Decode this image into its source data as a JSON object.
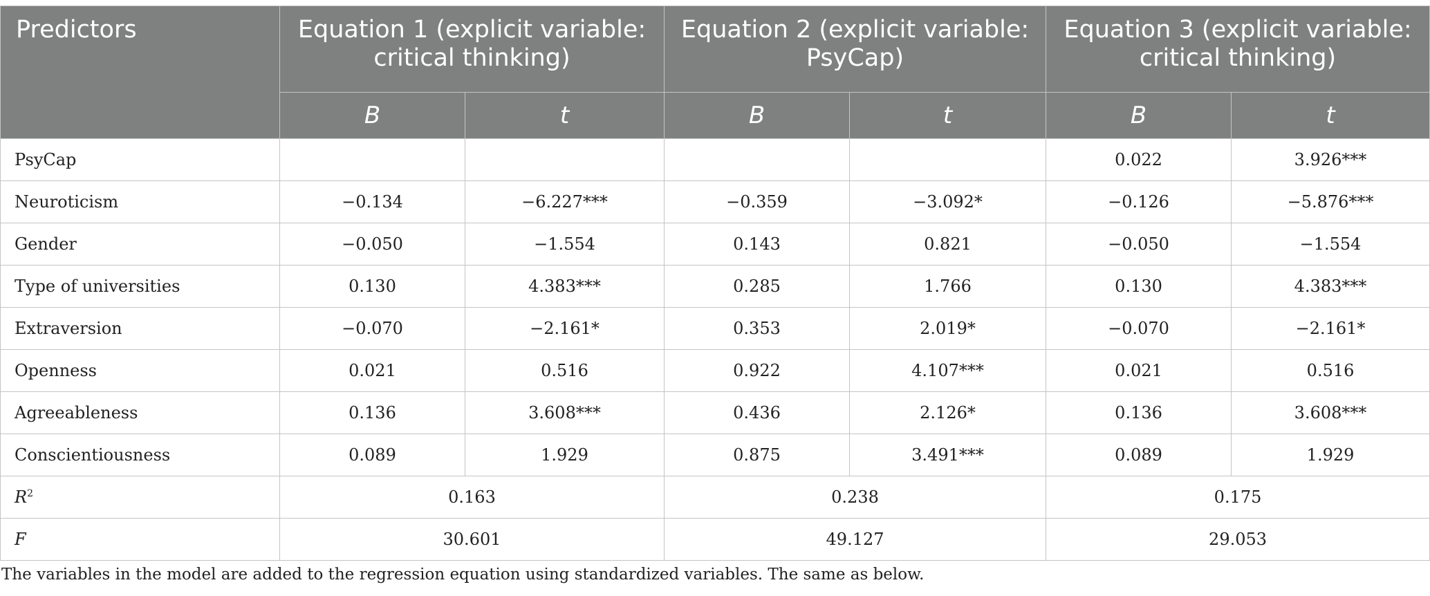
{
  "table": {
    "header": {
      "predictors": "Predictors",
      "equation1": "Equation 1 (explicit variable: critical thinking)",
      "equation2": "Equation 2 (explicit variable: PsyCap)",
      "equation3": "Equation 3 (explicit variable: critical thinking)",
      "b": "B",
      "t": "t"
    },
    "rows": [
      {
        "label": "PsyCap",
        "e1_b": "",
        "e1_t": "",
        "e2_b": "",
        "e2_t": "",
        "e3_b": "0.022",
        "e3_t": "3.926***"
      },
      {
        "label": "Neuroticism",
        "e1_b": "−0.134",
        "e1_t": "−6.227***",
        "e2_b": "−0.359",
        "e2_t": "−3.092*",
        "e3_b": "−0.126",
        "e3_t": "−5.876***"
      },
      {
        "label": "Gender",
        "e1_b": "−0.050",
        "e1_t": "−1.554",
        "e2_b": "0.143",
        "e2_t": "0.821",
        "e3_b": "−0.050",
        "e3_t": "−1.554"
      },
      {
        "label": "Type of universities",
        "e1_b": "0.130",
        "e1_t": "4.383***",
        "e2_b": "0.285",
        "e2_t": "1.766",
        "e3_b": "0.130",
        "e3_t": "4.383***"
      },
      {
        "label": "Extraversion",
        "e1_b": "−0.070",
        "e1_t": "−2.161*",
        "e2_b": "0.353",
        "e2_t": "2.019*",
        "e3_b": "−0.070",
        "e3_t": "−2.161*"
      },
      {
        "label": "Openness",
        "e1_b": "0.021",
        "e1_t": "0.516",
        "e2_b": "0.922",
        "e2_t": "4.107***",
        "e3_b": "0.021",
        "e3_t": "0.516"
      },
      {
        "label": "Agreeableness",
        "e1_b": "0.136",
        "e1_t": "3.608***",
        "e2_b": "0.436",
        "e2_t": "2.126*",
        "e3_b": "0.136",
        "e3_t": "3.608***"
      },
      {
        "label": "Conscientiousness",
        "e1_b": "0.089",
        "e1_t": "1.929",
        "e2_b": "0.875",
        "e2_t": "3.491***",
        "e3_b": "0.089",
        "e3_t": "1.929"
      }
    ],
    "r2": {
      "label": "R",
      "sup": "2",
      "e1": "0.163",
      "e2": "0.238",
      "e3": "0.175"
    },
    "f": {
      "label": "F",
      "e1": "30.601",
      "e2": "49.127",
      "e3": "29.053"
    }
  },
  "note": "The variables in the model are added to the regression equation using standardized variables. The same as below."
}
